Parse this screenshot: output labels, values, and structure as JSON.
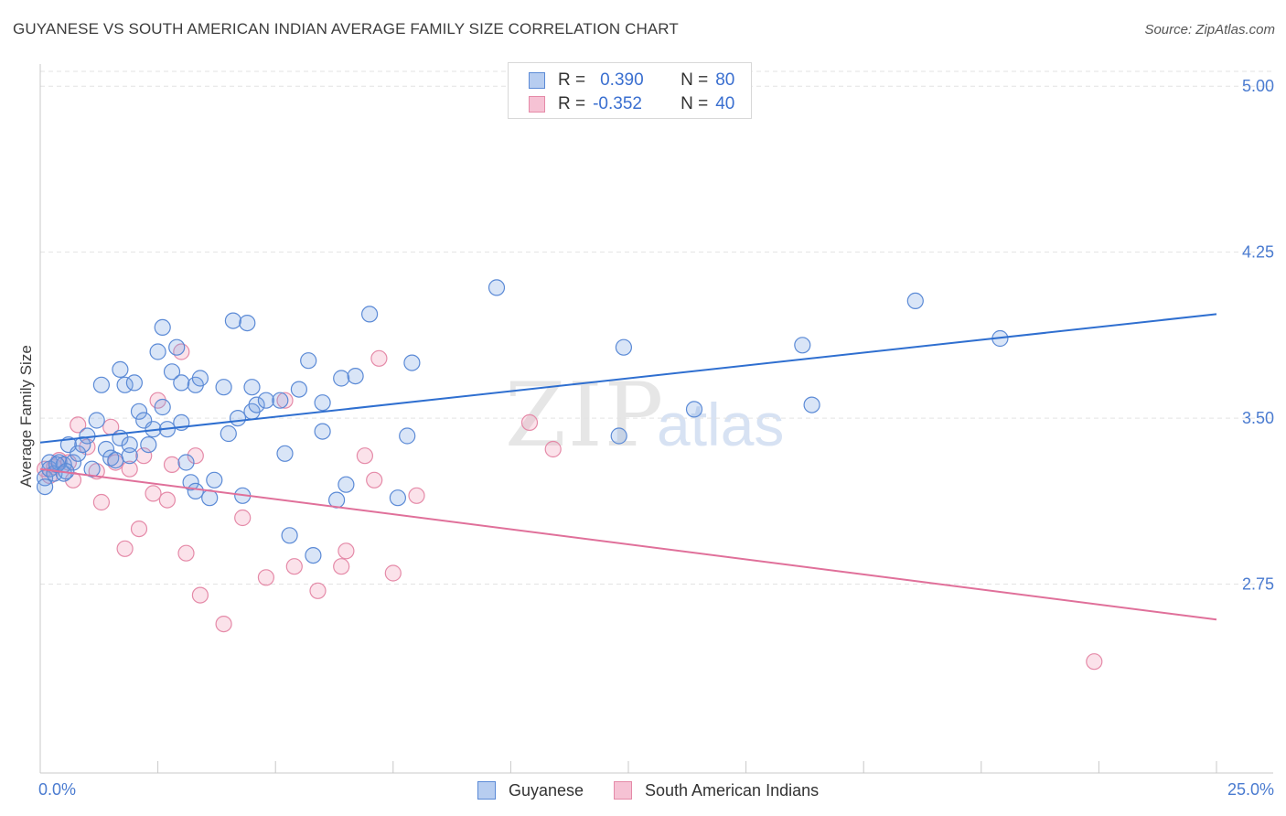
{
  "header": {
    "title": "GUYANESE VS SOUTH AMERICAN INDIAN AVERAGE FAMILY SIZE CORRELATION CHART",
    "source": "Source: ZipAtlas.com"
  },
  "watermark": {
    "zip": "ZIP",
    "atlas": "atlas"
  },
  "legend": {
    "rows": [
      {
        "r_label": "R =",
        "r_value": "0.390",
        "n_label": "N =",
        "n_value": "80",
        "fill": "#b7cdf0",
        "stroke": "#5b8ad6"
      },
      {
        "r_label": "R =",
        "r_value": "-0.352",
        "n_label": "N =",
        "n_value": "40",
        "fill": "#f6c2d4",
        "stroke": "#e58aa8"
      }
    ]
  },
  "bottom_legend": {
    "items": [
      {
        "label": "Guyanese",
        "fill": "#b7cdf0",
        "stroke": "#5b8ad6"
      },
      {
        "label": "South American Indians",
        "fill": "#f6c2d4",
        "stroke": "#e58aa8"
      }
    ]
  },
  "colors": {
    "blue_point_fill": "rgba(120,160,225,0.28)",
    "blue_point_stroke": "#5b8ad6",
    "pink_point_fill": "rgba(240,150,180,0.28)",
    "pink_point_stroke": "#e58aa8",
    "blue_line": "#2f6fd0",
    "pink_line": "#e0709a",
    "grid": "#e3e3e3",
    "axis": "#c8c8c8"
  },
  "chart_data": {
    "type": "scatter",
    "title": "GUYANESE VS SOUTH AMERICAN INDIAN AVERAGE FAMILY SIZE CORRELATION CHART",
    "xlabel": "",
    "ylabel": "Average Family Size",
    "xlim": [
      0,
      25
    ],
    "ylim": [
      2.0,
      5.1
    ],
    "x_tick_labels": [
      {
        "value": 0,
        "label": "0.0%"
      },
      {
        "value": 25,
        "label": "25.0%"
      }
    ],
    "y_ticks": [
      {
        "value": 2.75,
        "label": "2.75"
      },
      {
        "value": 3.5,
        "label": "3.50"
      },
      {
        "value": 4.25,
        "label": "4.25"
      },
      {
        "value": 5.0,
        "label": "5.00"
      }
    ],
    "x_minor_ticks": [
      2.5,
      5.0,
      7.5,
      10.0,
      12.5,
      15.0,
      17.5,
      20.0,
      22.5,
      25.0
    ],
    "grid": true,
    "legend_position": "top-center",
    "series": [
      {
        "name": "Guyanese",
        "trend": {
          "x": [
            0,
            25
          ],
          "y": [
            3.39,
            3.97
          ]
        },
        "points": [
          [
            0.1,
            3.23
          ],
          [
            0.1,
            3.19
          ],
          [
            0.2,
            3.3
          ],
          [
            0.2,
            3.27
          ],
          [
            0.3,
            3.25
          ],
          [
            0.4,
            3.3
          ],
          [
            0.5,
            3.29
          ],
          [
            0.5,
            3.25
          ],
          [
            0.6,
            3.38
          ],
          [
            0.7,
            3.3
          ],
          [
            0.8,
            3.34
          ],
          [
            0.9,
            3.38
          ],
          [
            1.0,
            3.42
          ],
          [
            1.1,
            3.27
          ],
          [
            1.2,
            3.49
          ],
          [
            1.3,
            3.65
          ],
          [
            1.4,
            3.36
          ],
          [
            1.5,
            3.32
          ],
          [
            1.6,
            3.31
          ],
          [
            1.7,
            3.41
          ],
          [
            1.7,
            3.72
          ],
          [
            1.8,
            3.65
          ],
          [
            1.9,
            3.38
          ],
          [
            1.9,
            3.33
          ],
          [
            2.0,
            3.66
          ],
          [
            2.1,
            3.53
          ],
          [
            2.2,
            3.49
          ],
          [
            2.3,
            3.38
          ],
          [
            2.4,
            3.45
          ],
          [
            2.5,
            3.8
          ],
          [
            2.6,
            3.91
          ],
          [
            2.6,
            3.55
          ],
          [
            2.7,
            3.45
          ],
          [
            2.8,
            3.71
          ],
          [
            2.9,
            3.82
          ],
          [
            3.0,
            3.48
          ],
          [
            3.0,
            3.66
          ],
          [
            3.1,
            3.3
          ],
          [
            3.2,
            3.21
          ],
          [
            3.3,
            3.65
          ],
          [
            3.3,
            3.17
          ],
          [
            3.4,
            3.68
          ],
          [
            3.6,
            3.14
          ],
          [
            3.7,
            3.22
          ],
          [
            3.9,
            3.64
          ],
          [
            4.0,
            3.43
          ],
          [
            4.1,
            3.94
          ],
          [
            4.2,
            3.5
          ],
          [
            4.3,
            3.15
          ],
          [
            4.4,
            3.93
          ],
          [
            4.5,
            3.53
          ],
          [
            4.5,
            3.64
          ],
          [
            4.6,
            3.56
          ],
          [
            4.8,
            3.58
          ],
          [
            5.1,
            3.58
          ],
          [
            5.2,
            3.34
          ],
          [
            5.3,
            2.97
          ],
          [
            5.5,
            3.63
          ],
          [
            5.7,
            3.76
          ],
          [
            5.8,
            2.88
          ],
          [
            6.0,
            3.57
          ],
          [
            6.0,
            3.44
          ],
          [
            6.3,
            3.13
          ],
          [
            6.4,
            3.68
          ],
          [
            6.5,
            3.2
          ],
          [
            6.7,
            3.69
          ],
          [
            7.0,
            3.97
          ],
          [
            7.6,
            3.14
          ],
          [
            7.8,
            3.42
          ],
          [
            7.9,
            3.75
          ],
          [
            9.7,
            4.09
          ],
          [
            12.3,
            3.42
          ],
          [
            12.4,
            3.82
          ],
          [
            13.9,
            3.54
          ],
          [
            16.2,
            3.83
          ],
          [
            16.4,
            3.56
          ],
          [
            18.6,
            4.03
          ],
          [
            20.4,
            3.86
          ],
          [
            0.35,
            3.29
          ],
          [
            0.55,
            3.26
          ]
        ]
      },
      {
        "name": "South American Indians",
        "trend": {
          "x": [
            0,
            25
          ],
          "y": [
            3.27,
            2.59
          ]
        },
        "points": [
          [
            0.1,
            3.27
          ],
          [
            0.2,
            3.24
          ],
          [
            0.4,
            3.31
          ],
          [
            0.6,
            3.3
          ],
          [
            0.7,
            3.22
          ],
          [
            0.8,
            3.47
          ],
          [
            1.0,
            3.37
          ],
          [
            1.2,
            3.26
          ],
          [
            1.3,
            3.12
          ],
          [
            1.5,
            3.46
          ],
          [
            1.6,
            3.3
          ],
          [
            1.8,
            2.91
          ],
          [
            1.9,
            3.27
          ],
          [
            2.1,
            3.0
          ],
          [
            2.2,
            3.33
          ],
          [
            2.4,
            3.16
          ],
          [
            2.5,
            3.58
          ],
          [
            2.7,
            3.13
          ],
          [
            2.8,
            3.29
          ],
          [
            3.0,
            3.8
          ],
          [
            3.1,
            2.89
          ],
          [
            3.3,
            3.33
          ],
          [
            3.4,
            2.7
          ],
          [
            3.9,
            2.57
          ],
          [
            4.3,
            3.05
          ],
          [
            4.8,
            2.78
          ],
          [
            5.2,
            3.58
          ],
          [
            5.4,
            2.83
          ],
          [
            5.9,
            2.72
          ],
          [
            6.4,
            2.83
          ],
          [
            6.5,
            2.9
          ],
          [
            6.9,
            3.33
          ],
          [
            7.1,
            3.22
          ],
          [
            7.2,
            3.77
          ],
          [
            7.5,
            2.8
          ],
          [
            8.0,
            3.15
          ],
          [
            10.4,
            3.48
          ],
          [
            10.9,
            3.36
          ],
          [
            22.4,
            2.4
          ],
          [
            0.3,
            3.28
          ]
        ]
      }
    ]
  }
}
